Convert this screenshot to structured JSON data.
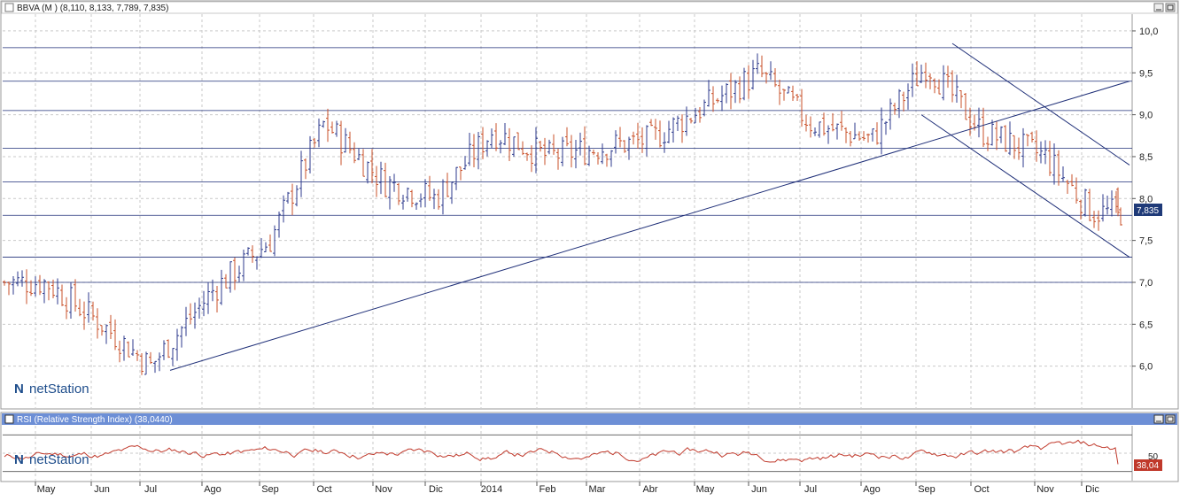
{
  "main_panel": {
    "title": "BBVA (M ) (8,110, 8,133, 7,789, 7,835)",
    "last_value_label": "7,835",
    "watermark": "netStation"
  },
  "rsi_panel": {
    "title": "RSI (Relative Strength Index) (38,0440)",
    "last_value_label": "38,04",
    "watermark": "netStation",
    "tick_label": "50"
  },
  "x_axis": {
    "labels": [
      "May",
      "Jun",
      "Jul",
      "Ago",
      "Sep",
      "Oct",
      "Nov",
      "Dic",
      "2014",
      "Feb",
      "Mar",
      "Abr",
      "May",
      "Jun",
      "Jul",
      "Ago",
      "Sep",
      "Oct",
      "Nov",
      "Dic"
    ]
  },
  "colors": {
    "up_bar": "#2c3a8c",
    "down_bar": "#c8502a",
    "trendline": "#1f2f78",
    "rsi_line": "#c0392b",
    "title_bar_main": "#ffffff",
    "title_bar_rsi": "#6d8fd6",
    "value_tag": "#1f3a78"
  },
  "chart_data": [
    {
      "type": "ohlc",
      "series_label": "BBVA (M )",
      "period_months": [
        "May",
        "Jun",
        "Jul",
        "Ago",
        "Sep",
        "Oct",
        "Nov",
        "Dic",
        "2014",
        "Feb",
        "Mar",
        "Abr",
        "May",
        "Jun",
        "Jul",
        "Ago",
        "Sep",
        "Oct",
        "Nov",
        "Dic"
      ],
      "last_bar": {
        "open": 8.11,
        "high": 8.133,
        "low": 7.789,
        "close": 7.835
      },
      "approx_close_path": [
        {
          "month": "May",
          "close": 7.0
        },
        {
          "month": "Jun",
          "close": 6.5
        },
        {
          "month": "Jul",
          "close": 6.0
        },
        {
          "month": "Ago",
          "close": 6.9
        },
        {
          "month": "Sep",
          "close": 7.5
        },
        {
          "month": "Oct",
          "close": 8.9
        },
        {
          "month": "Nov",
          "close": 8.2
        },
        {
          "month": "Dic",
          "close": 8.0
        },
        {
          "month": "2014",
          "close": 8.8
        },
        {
          "month": "Feb",
          "close": 8.5
        },
        {
          "month": "Mar",
          "close": 8.6
        },
        {
          "month": "Abr",
          "close": 8.7
        },
        {
          "month": "May",
          "close": 9.1
        },
        {
          "month": "Jun",
          "close": 9.5
        },
        {
          "month": "Jul",
          "close": 8.9
        },
        {
          "month": "Ago",
          "close": 8.7
        },
        {
          "month": "Sep",
          "close": 9.6
        },
        {
          "month": "Oct",
          "close": 8.8
        },
        {
          "month": "Nov",
          "close": 8.5
        },
        {
          "month": "Dic",
          "close": 7.835
        }
      ],
      "y_ticks": [
        "6,0",
        "6,5",
        "7,0",
        "7,5",
        "8,0",
        "8,5",
        "9,0",
        "9,5",
        "10,0"
      ],
      "ylim": [
        5.5,
        10.2
      ],
      "horizontal_levels": [
        9.8,
        9.4,
        9.05,
        8.6,
        8.2,
        7.8,
        7.3,
        7.0
      ],
      "trendlines": [
        {
          "from": {
            "month": "Jul",
            "value": 5.95
          },
          "to": {
            "month": "Dic",
            "value": 9.4
          }
        },
        {
          "from": {
            "month": "Sep",
            "value": 9.85
          },
          "to": {
            "month": "Dic",
            "value": 8.4
          }
        },
        {
          "from": {
            "month": "Sep",
            "value": 9.0
          },
          "to": {
            "month": "Dic",
            "value": 7.3
          }
        }
      ],
      "grid": true
    },
    {
      "type": "line",
      "series_label": "RSI (Relative Strength Index)",
      "last_value": 38.04,
      "y_ticks": [
        "50"
      ],
      "reference_levels": [
        30,
        70
      ],
      "ylim": [
        20,
        80
      ]
    }
  ]
}
